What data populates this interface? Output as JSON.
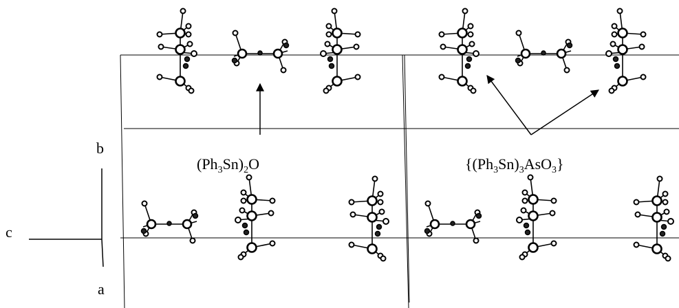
{
  "axes": {
    "b": "b",
    "c": "c",
    "a": "a"
  },
  "labels": [
    {
      "parts": [
        "(Ph",
        "3",
        "Sn)",
        "2",
        "O"
      ]
    },
    {
      "parts": [
        "{(Ph",
        "3",
        "Sn)",
        "3",
        "AsO",
        "3",
        "}"
      ]
    }
  ]
}
